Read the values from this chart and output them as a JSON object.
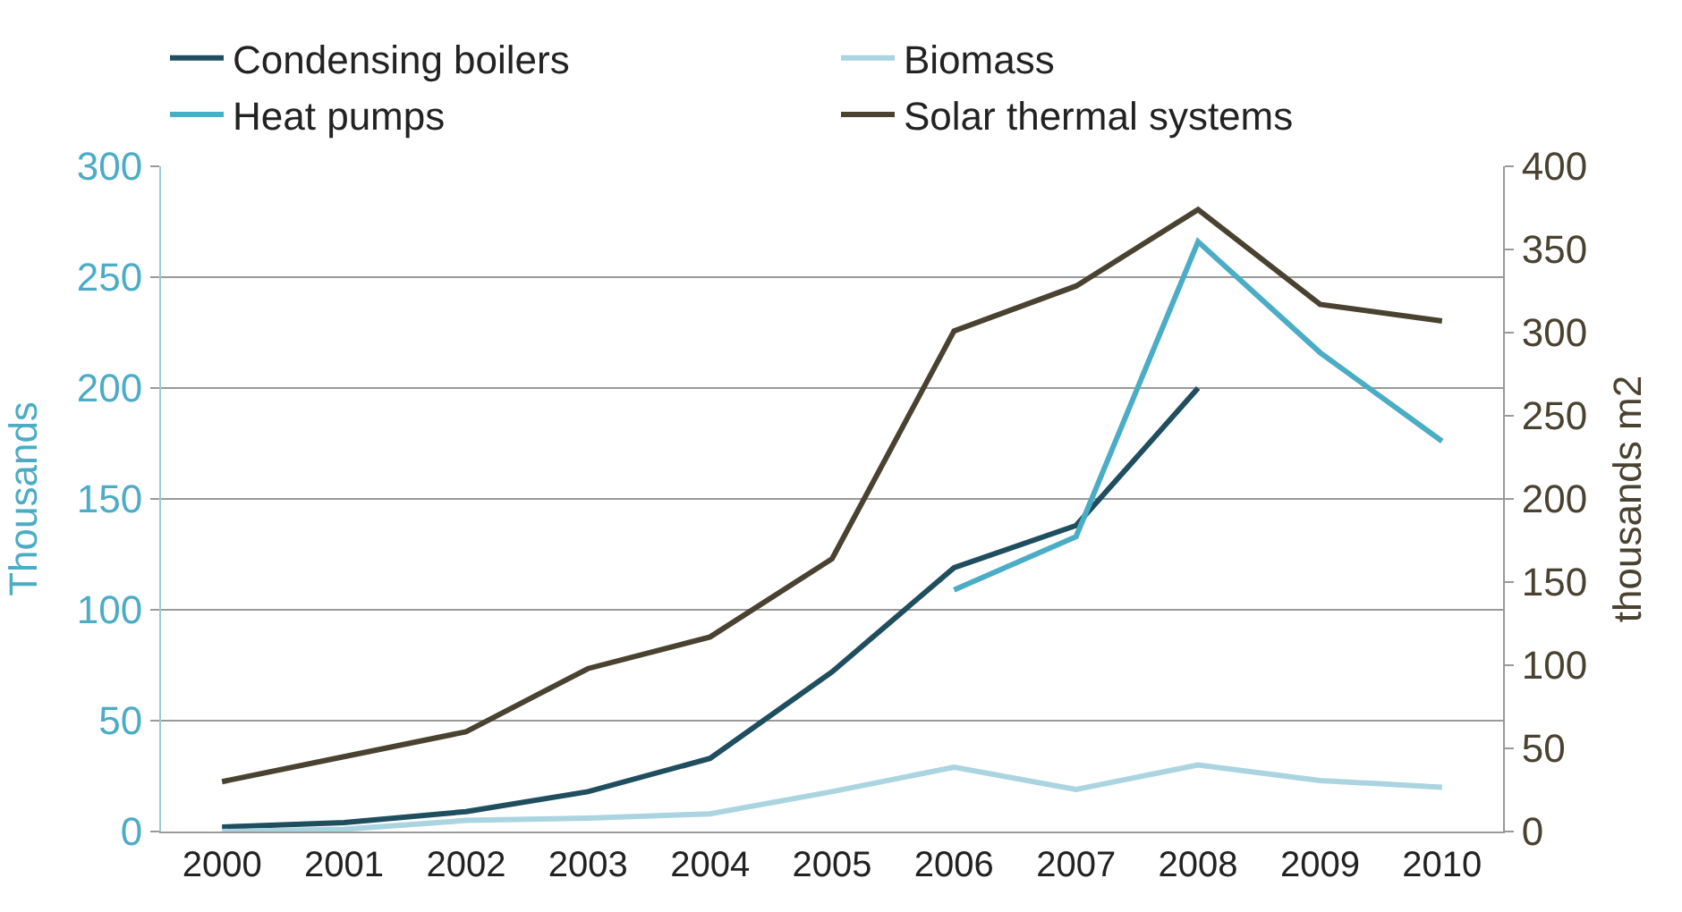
{
  "chart_data": {
    "type": "line",
    "ylabel": "Thousands",
    "y2label": "thousands m2",
    "categories": [
      "2000",
      "2001",
      "2002",
      "2003",
      "2004",
      "2005",
      "2006",
      "2007",
      "2008",
      "2009",
      "2010"
    ],
    "series": [
      {
        "name": "Condensing boilers",
        "color": "#1f4e5f",
        "values": [
          2,
          4,
          9,
          18,
          33,
          72,
          119,
          138,
          200,
          null,
          null
        ]
      },
      {
        "name": "Biomass",
        "color": "#a9d4e0",
        "values": [
          0,
          1,
          5,
          6,
          8,
          18,
          29,
          19,
          30,
          23,
          20
        ]
      },
      {
        "name": "Heat pumps",
        "color": "#4bacc6",
        "values": [
          null,
          null,
          null,
          null,
          null,
          null,
          109,
          133,
          266,
          216,
          176
        ]
      },
      {
        "name": "Solar thermal systems",
        "color": "#4a4230",
        "axis": "y2",
        "values": [
          30,
          45,
          60,
          98,
          117,
          164,
          301,
          328,
          374,
          317,
          307
        ]
      }
    ],
    "ylim": [
      0,
      300
    ],
    "yticks": [
      0,
      50,
      100,
      150,
      200,
      250,
      300
    ],
    "y2lim": [
      0,
      400
    ],
    "y2ticks": [
      0,
      50,
      100,
      150,
      200,
      250,
      300,
      350,
      400
    ],
    "grid": "y",
    "legend": "top",
    "marker": "none",
    "line_style": "solid"
  }
}
